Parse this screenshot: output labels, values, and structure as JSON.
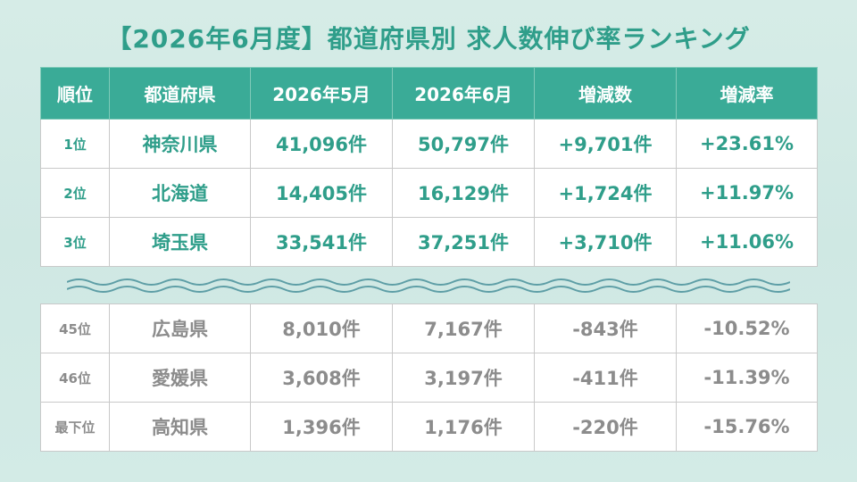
{
  "title": "【2026年6月度】都道府県別 求人数伸び率ランキング",
  "headers": [
    "順位",
    "都道府県",
    "2026年5月",
    "2026年6月",
    "増減数",
    "増減率"
  ],
  "top_rows": [
    {
      "rank": "1位",
      "prefecture": "神奈川県",
      "may": "41,096件",
      "june": "50,797件",
      "change": "+9,701件",
      "rate": "+23.61%"
    },
    {
      "rank": "2位",
      "prefecture": "北海道",
      "may": "14,405件",
      "june": "16,129件",
      "change": "+1,724件",
      "rate": "+11.97%"
    },
    {
      "rank": "3位",
      "prefecture": "埼玉県",
      "may": "33,541件",
      "june": "37,251件",
      "change": "+3,710件",
      "rate": "+11.06%"
    }
  ],
  "bottom_rows": [
    {
      "rank": "45位",
      "prefecture": "広島県",
      "may": "8,010件",
      "june": "7,167件",
      "change": "-843件",
      "rate": "-10.52%"
    },
    {
      "rank": "46位",
      "prefecture": "愛媛県",
      "may": "3,608件",
      "june": "3,197件",
      "change": "-411件",
      "rate": "-11.39%"
    },
    {
      "rank": "最下位",
      "prefecture": "高知県",
      "may": "1,396件",
      "june": "1,176件",
      "change": "-220件",
      "rate": "-15.76%"
    }
  ],
  "colors": {
    "accent": "#3aab97",
    "top_text": "#2f9e8a",
    "bottom_text": "#8c8c8c",
    "wave": "#5e9ea6"
  }
}
